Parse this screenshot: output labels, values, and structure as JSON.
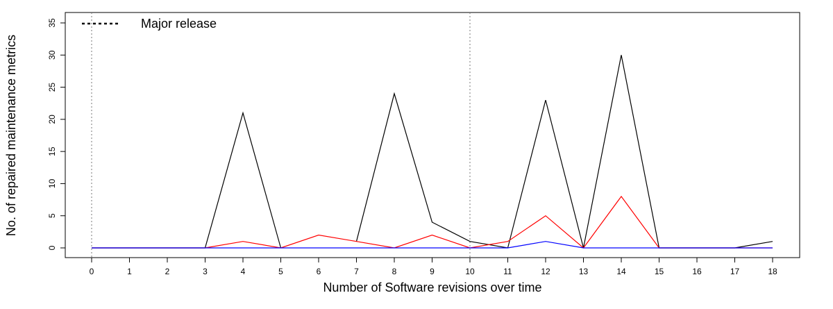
{
  "chart_data": {
    "type": "line",
    "xlabel": "Number of Software revisions over time",
    "ylabel": "No. of repaired maintenance metrics",
    "x": [
      0,
      1,
      2,
      3,
      4,
      5,
      6,
      7,
      8,
      9,
      10,
      11,
      12,
      13,
      14,
      15,
      16,
      17,
      18
    ],
    "xlim": [
      0,
      18
    ],
    "ylim": [
      0,
      35
    ],
    "x_ticks": [
      0,
      1,
      2,
      3,
      4,
      5,
      6,
      7,
      8,
      9,
      10,
      11,
      12,
      13,
      14,
      15,
      16,
      17,
      18
    ],
    "y_ticks": [
      0,
      5,
      10,
      15,
      20,
      25,
      30,
      35
    ],
    "grid": false,
    "series": [
      {
        "color": "#000000",
        "values": [
          0,
          0,
          0,
          0,
          21,
          0,
          null,
          1,
          24,
          4,
          1,
          0,
          23,
          0,
          30,
          0,
          0,
          0,
          1
        ]
      },
      {
        "color": "#ff0000",
        "values": [
          0,
          0,
          0,
          0,
          1,
          0,
          2,
          1,
          0,
          2,
          0,
          1,
          5,
          0,
          8,
          0,
          0,
          0,
          0
        ]
      },
      {
        "color": "#0000ff",
        "values": [
          0,
          0,
          0,
          0,
          0,
          0,
          0,
          0,
          0,
          0,
          0,
          0,
          1,
          0,
          0,
          0,
          0,
          0,
          0
        ]
      }
    ],
    "vlines": [
      0,
      10
    ],
    "legend": {
      "label": "Major release",
      "placement": "top-left",
      "style": "dotted"
    }
  }
}
